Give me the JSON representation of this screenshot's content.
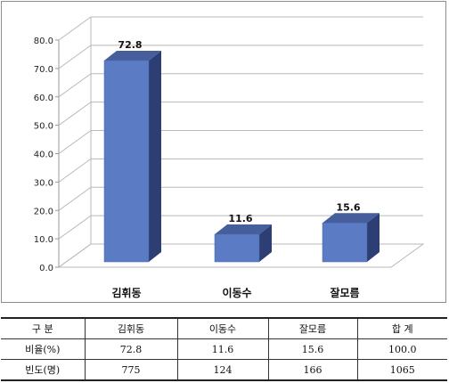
{
  "chart_data": {
    "type": "bar",
    "categories": [
      "김휘동",
      "이동수",
      "잘모름"
    ],
    "values": [
      72.8,
      11.6,
      15.6
    ],
    "data_labels": [
      "72.8",
      "11.6",
      "15.6"
    ],
    "ytick_labels": [
      "0.0",
      "10.0",
      "20.0",
      "30.0",
      "40.0",
      "50.0",
      "60.0",
      "70.0",
      "80.0"
    ],
    "ylim": [
      0,
      80
    ],
    "grid": true,
    "style": "3d",
    "title": "",
    "xlabel": "",
    "ylabel": "",
    "colors": {
      "bar_front": "#5b7cc4",
      "bar_side": "#2c3e74",
      "bar_top": "#465f9c",
      "grid": "#b8b8b8"
    }
  },
  "table": {
    "headers": [
      "구 분",
      "김휘동",
      "이동수",
      "잘모름",
      "합 계"
    ],
    "rows": [
      {
        "label": "비율(%)",
        "cells": [
          "72.8",
          "11.6",
          "15.6",
          "100.0"
        ]
      },
      {
        "label": "빈도(명)",
        "cells": [
          "775",
          "124",
          "166",
          "1065"
        ]
      }
    ]
  }
}
